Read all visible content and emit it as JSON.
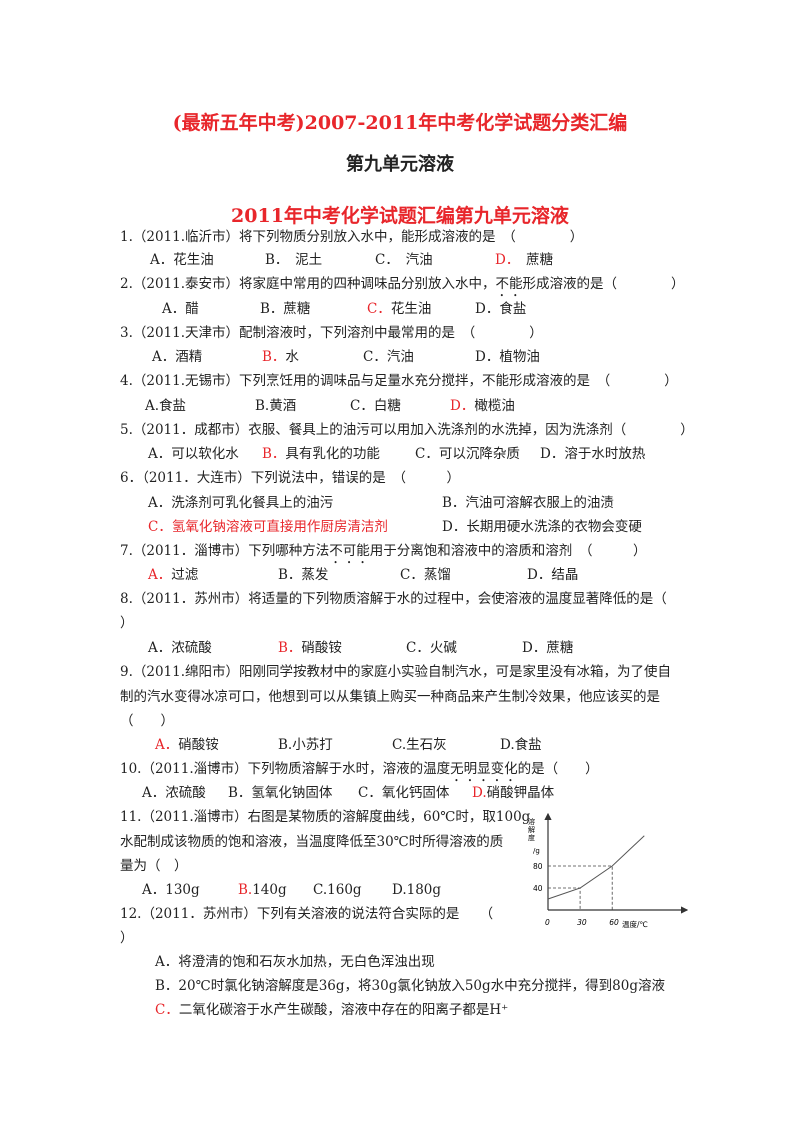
{
  "title": "(最新五年中考)2007-2011年中考化学试题分类汇编",
  "subtitle": "第九单元溶液",
  "heading": "2011年中考化学试题汇编第九单元溶液",
  "colors": {
    "answer": "#e8262b",
    "text": "#222222"
  },
  "q1": {
    "stem": "1.（2011.临沂市）将下列物质分别放入水中，能形成溶液的是　（　　　　）",
    "A": "A．花生油",
    "B": "B．　泥土",
    "C": "C．　汽油",
    "D_letter": "D．",
    "D": "　蔗糖"
  },
  "q2": {
    "stem_a": "2.（2011.泰安市）将家庭中常用的四种调味品分别放入水中，",
    "stem_em": "不能",
    "stem_b": "形成溶液的是（　　　　）",
    "A": "A．醋",
    "B": "B．蔗糖",
    "C_letter": "C．",
    "C": "花生油",
    "D": "D．食盐"
  },
  "q3": {
    "stem": "3.（2011.天津市）配制溶液时，下列溶剂中最常用的是　（　　　　）",
    "A": "A．酒精",
    "B_letter": "B．",
    "B": "水",
    "C": "C．汽油",
    "D": "D．植物油"
  },
  "q4": {
    "stem": "4.（2011.无锡市）下列烹饪用的调味品与足量水充分搅拌，不能形成溶液的是　（　　　　）",
    "A": "A.食盐",
    "B": "B.黄酒",
    "C": "C．白糖",
    "D_letter": "D．",
    "D": "橄榄油"
  },
  "q5": {
    "stem": "5.（2011．成都市）衣服、餐具上的油污可以用加入洗涤剂的水洗掉，因为洗涤剂（　　　　）",
    "A": "A．可以软化水",
    "B_letter": "B．",
    "B": "具有乳化的功能",
    "C": "C．可以沉降杂质",
    "D": "D．溶于水时放热"
  },
  "q6": {
    "stem": "6．（2011．大连市）下列说法中，错误的是　（　　　）",
    "A": "A．洗涤剂可乳化餐具上的油污",
    "B": "B．汽油可溶解衣服上的油渍",
    "C": "C．氢氧化钠溶液可直接用作厨房清洁剂",
    "D": "D．长期用硬水洗涤的衣物会变硬"
  },
  "q7": {
    "stem_a": "7.（2011．淄博市）下列哪种方法",
    "stem_em": "不可能",
    "stem_b": "用于分离饱和溶液中的溶质和溶剂　（　　　）",
    "A_letter": "A．",
    "A": "过滤",
    "B": "B．蒸发",
    "C": "C．蒸馏",
    "D": "D．结晶"
  },
  "q8": {
    "stem": "8.（2011．苏州市）将适量的下列物质溶解于水的过程中，会使溶液的温度显著降低的是（",
    "stem2": "）",
    "A": "A．浓硫酸",
    "B_letter": "B．",
    "B": "硝酸铵",
    "C": "C．火碱",
    "D": "D．蔗糖"
  },
  "q9": {
    "stem": "9.（2011.绵阳市）阳刚同学按教材中的家庭小实验自制汽水，可是家里没有冰箱，为了使自",
    "stem2": "制的汽水变得冰凉可口，他想到可以从集镇上购买一种商品来产生制冷效果，他应该买的是",
    "stem3": "（　　）",
    "A_letter": "A．",
    "A": "硝酸铵",
    "B": "B.小苏打",
    "C": "C.生石灰",
    "D": "D.食盐"
  },
  "q10": {
    "stem_a": "10.（2011.淄博市）下列物质溶解于水时，溶液的温度",
    "stem_em": "无明显变化",
    "stem_b": "的是（　　）",
    "A": "A．浓硫酸",
    "B": "B．氢氧化钠固体",
    "C": "C．氧化钙固体",
    "D_letter": "D.",
    "D": "硝酸钾晶体"
  },
  "q11": {
    "stem": "11.（2011.淄博市）右图是某物质的溶解度曲线，60℃时，取100g",
    "stem2": "水配制成该物质的饱和溶液，当温度降低至30℃时所得溶液的质",
    "stem3": "量为（　）",
    "A": "A．130g",
    "B_letter": "B.",
    "B": "140g",
    "C": "C.160g",
    "D": "D.180g"
  },
  "q12": {
    "stem": "12.（2011．苏州市）下列有关溶液的说法符合实际的是　　（",
    "stem2": "）",
    "A": "A．将澄清的饱和石灰水加热，无白色浑浊出现",
    "B": "B．20℃时氯化钠溶解度是36g，将30g氯化钠放入50g水中充分搅拌，得到80g溶液",
    "C_letter": "C．",
    "C": "二氧化碳溶于水产生碳酸，溶液中存在的阳离子都是H⁺"
  },
  "chart_data": {
    "type": "line",
    "ylabel": "溶解度/g",
    "xlabel": "温度/℃",
    "x_ticks": [
      "0",
      "30",
      "60"
    ],
    "y_ticks": [
      "40",
      "80"
    ],
    "points": [
      [
        0,
        20
      ],
      [
        30,
        40
      ],
      [
        60,
        80
      ],
      [
        90,
        135
      ]
    ],
    "guides": [
      [
        30,
        40
      ],
      [
        60,
        80
      ]
    ]
  }
}
